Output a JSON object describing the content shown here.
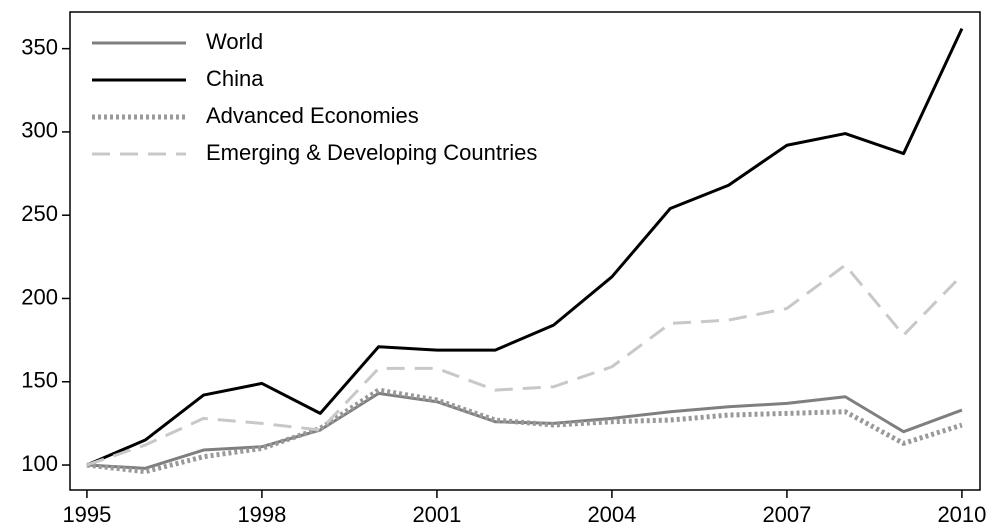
{
  "chart_data": {
    "type": "line",
    "x": [
      1995,
      1996,
      1997,
      1998,
      1999,
      2000,
      2001,
      2002,
      2003,
      2004,
      2005,
      2006,
      2007,
      2008,
      2009,
      2010
    ],
    "series": [
      {
        "name": "World",
        "color": "#7f7f7f",
        "style": "solid",
        "values": [
          100,
          98,
          109,
          111,
          121,
          143,
          138,
          126,
          125,
          128,
          132,
          135,
          137,
          141,
          120,
          133
        ]
      },
      {
        "name": "China",
        "color": "#000000",
        "style": "solid",
        "values": [
          100,
          115,
          142,
          149,
          131,
          171,
          169,
          169,
          184,
          213,
          254,
          268,
          292,
          299,
          287,
          362
        ]
      },
      {
        "name": "Advanced Economies",
        "color": "#999999",
        "style": "dotted",
        "values": [
          100,
          96,
          105,
          110,
          122,
          145,
          139,
          127,
          124,
          126,
          127,
          130,
          131,
          132,
          113,
          124
        ]
      },
      {
        "name": "Emerging & Developing Countries",
        "color": "#c8c8c8",
        "style": "dashed",
        "values": [
          100,
          112,
          128,
          125,
          121,
          158,
          158,
          145,
          147,
          159,
          185,
          187,
          194,
          220,
          178,
          214
        ]
      }
    ],
    "xlim": [
      1994.71,
      2010.31
    ],
    "xticks": [
      1995,
      1998,
      2001,
      2004,
      2007,
      2010
    ],
    "ylim": [
      85,
      372
    ],
    "yticks": [
      100,
      150,
      200,
      250,
      300,
      350
    ],
    "legend": "top-left"
  }
}
